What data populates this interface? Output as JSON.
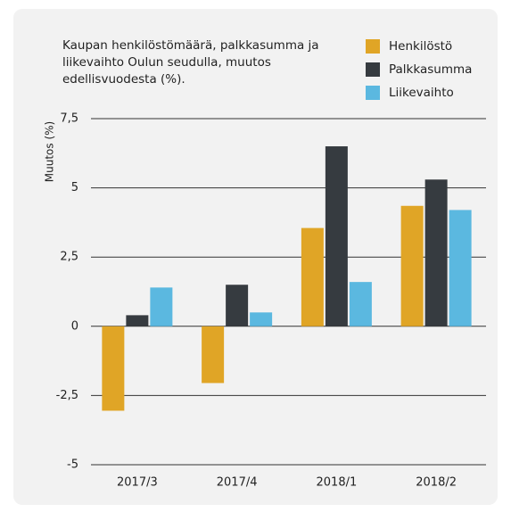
{
  "chart_data": {
    "type": "bar",
    "title": "Kaupan henkilöstömäärä, palkkasumma ja liikevaihto Oulun seudulla, muutos  edellisvuodesta (%).",
    "y_axis_label": "Muutos  (%)",
    "categories": [
      "2017/3",
      "2017/4",
      "2018/1",
      "2018/2"
    ],
    "series": [
      {
        "name": "Henkilöstö",
        "color": "#e0a526",
        "values": [
          -3.05,
          -2.05,
          3.55,
          4.35
        ]
      },
      {
        "name": "Palkkasumma",
        "color": "#363b40",
        "values": [
          0.4,
          1.5,
          6.5,
          5.3
        ]
      },
      {
        "name": "Liikevaihto",
        "color": "#5bb8e0",
        "values": [
          1.4,
          0.5,
          1.6,
          4.2
        ]
      }
    ],
    "ylim": [
      -5,
      7.5
    ],
    "yticks": [
      {
        "value": -5,
        "label": "-5"
      },
      {
        "value": -2.5,
        "label": "-2,5"
      },
      0,
      {
        "value": 2.5,
        "label": "2,5"
      },
      5,
      {
        "value": 7.5,
        "label": "7,5"
      }
    ],
    "grid": true,
    "legend": "top-right"
  }
}
